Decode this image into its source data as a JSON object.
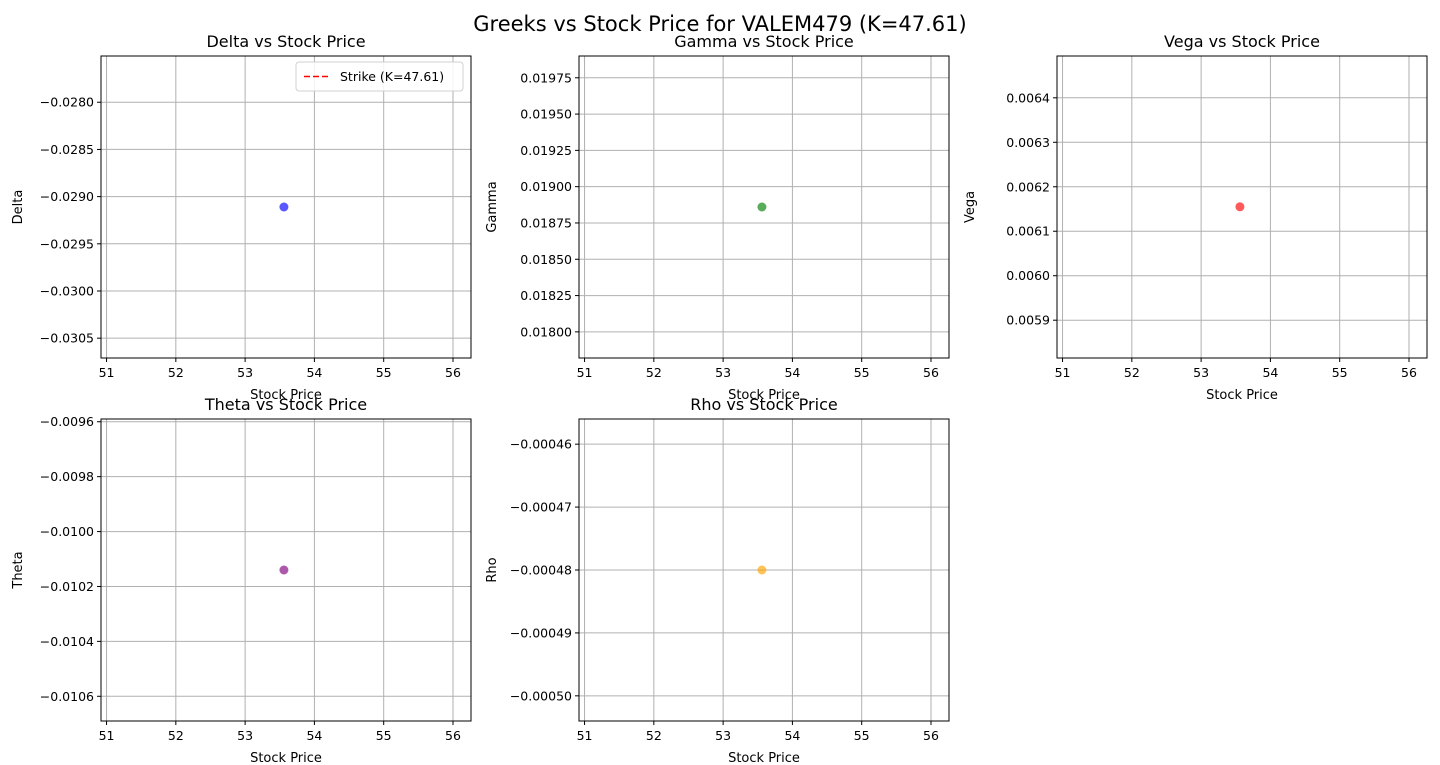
{
  "figure": {
    "title": "Greeks vs Stock Price for VALEM479 (K=47.61)"
  },
  "chart_data": [
    {
      "type": "scatter",
      "title": "Delta vs Stock Price",
      "xlabel": "Stock Price",
      "ylabel": "Delta",
      "xlim": [
        50.92,
        56.26
      ],
      "ylim": [
        -0.03071,
        -0.02751
      ],
      "xticks": [
        51,
        52,
        53,
        54,
        55,
        56
      ],
      "yticks": [
        -0.0305,
        -0.03,
        -0.0295,
        -0.029,
        -0.0285,
        -0.028
      ],
      "ytick_labels": [
        "−0.0305",
        "−0.0300",
        "−0.0295",
        "−0.0290",
        "−0.0285",
        "−0.0280"
      ],
      "grid": true,
      "series": [
        {
          "x": [
            53.56
          ],
          "y": [
            -0.02911
          ],
          "color": "#0000ff"
        }
      ],
      "legend": {
        "position": "top-right",
        "entries": [
          {
            "label": "Strike (K=47.61)",
            "color": "#ff0000",
            "style": "dashed"
          }
        ]
      }
    },
    {
      "type": "scatter",
      "title": "Gamma vs Stock Price",
      "xlabel": "Stock Price",
      "ylabel": "Gamma",
      "xlim": [
        50.92,
        56.26
      ],
      "ylim": [
        0.01782,
        0.0199
      ],
      "xticks": [
        51,
        52,
        53,
        54,
        55,
        56
      ],
      "yticks": [
        0.018,
        0.01825,
        0.0185,
        0.01875,
        0.019,
        0.01925,
        0.0195,
        0.01975
      ],
      "ytick_labels": [
        "0.01800",
        "0.01825",
        "0.01850",
        "0.01875",
        "0.01900",
        "0.01925",
        "0.01950",
        "0.01975"
      ],
      "grid": true,
      "series": [
        {
          "x": [
            53.56
          ],
          "y": [
            0.01886
          ],
          "color": "#008000"
        }
      ]
    },
    {
      "type": "scatter",
      "title": "Vega vs Stock Price",
      "xlabel": "Stock Price",
      "ylabel": "Vega",
      "xlim": [
        50.92,
        56.26
      ],
      "ylim": [
        0.005815,
        0.006494
      ],
      "xticks": [
        51,
        52,
        53,
        54,
        55,
        56
      ],
      "yticks": [
        0.0059,
        0.006,
        0.0061,
        0.0062,
        0.0063,
        0.0064
      ],
      "ytick_labels": [
        "0.0059",
        "0.0060",
        "0.0061",
        "0.0062",
        "0.0063",
        "0.0064"
      ],
      "grid": true,
      "series": [
        {
          "x": [
            53.56
          ],
          "y": [
            0.006155
          ],
          "color": "#ff0000"
        }
      ]
    },
    {
      "type": "scatter",
      "title": "Theta vs Stock Price",
      "xlabel": "Stock Price",
      "ylabel": "Theta",
      "xlim": [
        50.92,
        56.26
      ],
      "ylim": [
        -0.01069,
        -0.00959
      ],
      "xticks": [
        51,
        52,
        53,
        54,
        55,
        56
      ],
      "yticks": [
        -0.0106,
        -0.0104,
        -0.0102,
        -0.01,
        -0.0098,
        -0.0096
      ],
      "ytick_labels": [
        "−0.0106",
        "−0.0104",
        "−0.0102",
        "−0.0100",
        "−0.0098",
        "−0.0096"
      ],
      "grid": true,
      "series": [
        {
          "x": [
            53.56
          ],
          "y": [
            -0.01014
          ],
          "color": "#800080"
        }
      ]
    },
    {
      "type": "scatter",
      "title": "Rho vs Stock Price",
      "xlabel": "Stock Price",
      "ylabel": "Rho",
      "xlim": [
        50.92,
        56.26
      ],
      "ylim": [
        -0.000504,
        -0.000456
      ],
      "xticks": [
        51,
        52,
        53,
        54,
        55,
        56
      ],
      "yticks": [
        -0.0005,
        -0.00049,
        -0.00048,
        -0.00047,
        -0.00046
      ],
      "ytick_labels": [
        "−0.00050",
        "−0.00049",
        "−0.00048",
        "−0.00047",
        "−0.00046"
      ],
      "grid": true,
      "series": [
        {
          "x": [
            53.56
          ],
          "y": [
            -0.00048
          ],
          "color": "#ffa500"
        }
      ]
    }
  ]
}
